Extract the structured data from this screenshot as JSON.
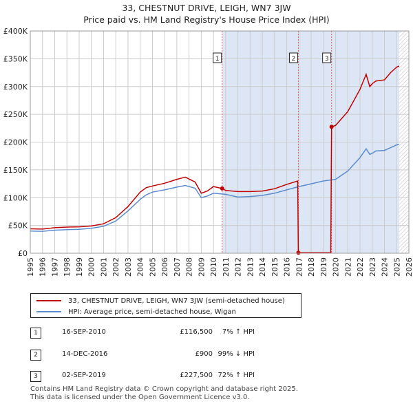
{
  "title_line1": "33, CHESTNUT DRIVE, LEIGH, WN7 3JW",
  "title_line2": "Price paid vs. HM Land Registry's House Price Index (HPI)",
  "colors": {
    "property": "#c00000",
    "hpi": "#5b8ccf",
    "shade": "#dce6f5",
    "grid": "#cccccc"
  },
  "chart_data": {
    "type": "line",
    "ylim": [
      0,
      400000
    ],
    "xlim": [
      1995,
      2026
    ],
    "y_ticks": [
      "£0",
      "£50K",
      "£100K",
      "£150K",
      "£200K",
      "£250K",
      "£300K",
      "£350K",
      "£400K"
    ],
    "x_ticks": [
      "1995",
      "1996",
      "1997",
      "1998",
      "1999",
      "2000",
      "2001",
      "2002",
      "2003",
      "2004",
      "2005",
      "2006",
      "2007",
      "2008",
      "2009",
      "2010",
      "2011",
      "2012",
      "2013",
      "2014",
      "2015",
      "2016",
      "2017",
      "2018",
      "2019",
      "2020",
      "2021",
      "2022",
      "2023",
      "2024",
      "2025",
      "2026"
    ],
    "sale_markers": [
      {
        "label": "1",
        "x": 2010.71,
        "y": 116500
      },
      {
        "label": "2",
        "x": 2016.95,
        "y": 900
      },
      {
        "label": "3",
        "x": 2019.67,
        "y": 227500
      }
    ],
    "shaded_region": [
      2010.71,
      2025.2
    ],
    "series": [
      {
        "name": "33, CHESTNUT DRIVE, LEIGH, WN7 3JW (semi-detached house)",
        "x": [
          1995,
          1996,
          1997,
          1998,
          1999,
          2000,
          2001,
          2002,
          2003,
          2004,
          2004.5,
          2005,
          2006,
          2007,
          2007.7,
          2008.5,
          2009,
          2009.5,
          2010,
          2010.71,
          2011,
          2012,
          2013,
          2014,
          2015,
          2016,
          2016.9,
          2016.95,
          2017,
          2018,
          2019,
          2019.6,
          2019.67,
          2020,
          2021,
          2022,
          2022.5,
          2022.8,
          2023,
          2023.3,
          2024,
          2024.5,
          2025,
          2025.2
        ],
        "y": [
          44000,
          43500,
          46000,
          47000,
          47500,
          49000,
          53000,
          64000,
          84000,
          110000,
          118000,
          121000,
          126000,
          133000,
          137000,
          128000,
          108000,
          112000,
          120000,
          116500,
          113000,
          111000,
          111000,
          112000,
          116000,
          124000,
          130000,
          900,
          900,
          900,
          900,
          900,
          227500,
          230000,
          255000,
          295000,
          322000,
          300000,
          305000,
          310000,
          312000,
          325000,
          335000,
          337000
        ]
      },
      {
        "name": "HPI: Average price, semi-detached house, Wigan",
        "x": [
          1995,
          1996,
          1997,
          1998,
          1999,
          2000,
          2001,
          2002,
          2003,
          2004,
          2004.5,
          2005,
          2006,
          2007,
          2007.7,
          2008.5,
          2009,
          2009.5,
          2010,
          2011,
          2012,
          2013,
          2014,
          2015,
          2016,
          2017,
          2018,
          2019,
          2020,
          2021,
          2022,
          2022.5,
          2022.8,
          2023,
          2023.3,
          2024,
          2024.5,
          2025,
          2025.2
        ],
        "y": [
          40000,
          39500,
          41500,
          42500,
          43000,
          45000,
          48500,
          58000,
          76000,
          97000,
          105000,
          110000,
          114000,
          119000,
          122000,
          117000,
          100000,
          103000,
          108000,
          106000,
          101000,
          102000,
          104000,
          108000,
          114000,
          120000,
          125000,
          130000,
          133000,
          148000,
          172000,
          188000,
          178000,
          180000,
          184000,
          185000,
          190000,
          195000,
          196000
        ]
      }
    ]
  },
  "legend": {
    "property_label": "33, CHESTNUT DRIVE, LEIGH, WN7 3JW (semi-detached house)",
    "hpi_label": "HPI: Average price, semi-detached house, Wigan"
  },
  "transactions": [
    {
      "num": "1",
      "date": "16-SEP-2010",
      "price": "£116,500",
      "hpi": "7% ↑ HPI"
    },
    {
      "num": "2",
      "date": "14-DEC-2016",
      "price": "£900",
      "hpi": "99% ↓ HPI"
    },
    {
      "num": "3",
      "date": "02-SEP-2019",
      "price": "£227,500",
      "hpi": "72% ↑ HPI"
    }
  ],
  "footer_line1": "Contains HM Land Registry data © Crown copyright and database right 2025.",
  "footer_line2": "This data is licensed under the Open Government Licence v3.0."
}
